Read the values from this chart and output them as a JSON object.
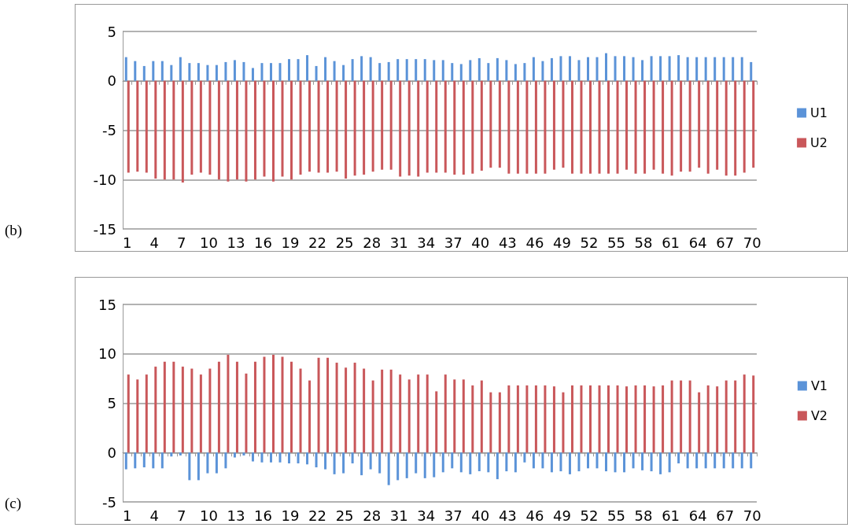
{
  "chart_data": [
    {
      "type": "bar",
      "annotations": [
        "(b)"
      ],
      "categories": [
        "1",
        null,
        null,
        "4",
        null,
        null,
        "7",
        null,
        null,
        "10",
        null,
        null,
        "13",
        null,
        null,
        "16",
        null,
        null,
        "19",
        null,
        null,
        "22",
        null,
        null,
        "25",
        null,
        null,
        "28",
        null,
        null,
        "31",
        null,
        null,
        "34",
        null,
        null,
        "37",
        null,
        null,
        "40",
        null,
        null,
        "43",
        null,
        null,
        "46",
        null,
        null,
        "49",
        null,
        null,
        "52",
        null,
        null,
        "55",
        null,
        null,
        "58",
        null,
        null,
        "61",
        null,
        null,
        "64",
        null,
        null,
        "67",
        null,
        null,
        "70"
      ],
      "series": [
        {
          "name": "U1",
          "color": "#5b93d8",
          "values": [
            2.4,
            2.0,
            1.5,
            2.0,
            2.0,
            1.6,
            2.4,
            1.8,
            1.8,
            1.6,
            1.6,
            1.9,
            2.1,
            1.9,
            1.3,
            1.8,
            1.8,
            1.8,
            2.2,
            2.2,
            2.6,
            1.5,
            2.4,
            2.0,
            1.6,
            2.2,
            2.5,
            2.4,
            1.8,
            1.9,
            2.2,
            2.2,
            2.2,
            2.2,
            2.1,
            2.1,
            1.8,
            1.7,
            2.1,
            2.3,
            1.8,
            2.3,
            2.1,
            1.7,
            1.8,
            2.4,
            2.0,
            2.3,
            2.5,
            2.5,
            2.1,
            2.4,
            2.4,
            2.8,
            2.5,
            2.5,
            2.4,
            2.1,
            2.5,
            2.5,
            2.5,
            2.6,
            2.4,
            2.4,
            2.4,
            2.4,
            2.4,
            2.4,
            2.4,
            1.9
          ]
        },
        {
          "name": "U2",
          "color": "#c9575a",
          "values": [
            -9.3,
            -9.2,
            -9.3,
            -9.9,
            -10.0,
            -10.0,
            -10.3,
            -9.5,
            -9.3,
            -9.5,
            -10.0,
            -10.2,
            -10.0,
            -10.2,
            -10.0,
            -9.7,
            -10.2,
            -9.7,
            -10.0,
            -9.5,
            -9.2,
            -9.3,
            -9.3,
            -9.2,
            -9.9,
            -9.6,
            -9.5,
            -9.2,
            -9.0,
            -9.0,
            -9.7,
            -9.6,
            -9.7,
            -9.3,
            -9.3,
            -9.3,
            -9.5,
            -9.5,
            -9.4,
            -9.1,
            -8.8,
            -8.8,
            -9.4,
            -9.4,
            -9.4,
            -9.4,
            -9.4,
            -9.0,
            -8.8,
            -9.4,
            -9.4,
            -9.4,
            -9.4,
            -9.4,
            -9.4,
            -9.0,
            -9.4,
            -9.4,
            -9.0,
            -9.4,
            -9.6,
            -9.2,
            -9.2,
            -8.8,
            -9.4,
            -9.0,
            -9.6,
            -9.6,
            -9.3,
            -8.8
          ]
        }
      ],
      "ylim": [
        -15,
        5
      ],
      "yticks": [
        -15,
        -10,
        -5,
        0,
        5
      ],
      "grid": "y",
      "legend": "right"
    },
    {
      "type": "bar",
      "annotations": [
        "(c)"
      ],
      "categories": [
        "1",
        null,
        null,
        "4",
        null,
        null,
        "7",
        null,
        null,
        "10",
        null,
        null,
        "13",
        null,
        null,
        "16",
        null,
        null,
        "19",
        null,
        null,
        "22",
        null,
        null,
        "25",
        null,
        null,
        "28",
        null,
        null,
        "31",
        null,
        null,
        "34",
        null,
        null,
        "37",
        null,
        null,
        "40",
        null,
        null,
        "43",
        null,
        null,
        "46",
        null,
        null,
        "49",
        null,
        null,
        "52",
        null,
        null,
        "55",
        null,
        null,
        "58",
        null,
        null,
        "61",
        null,
        null,
        "64",
        null,
        null,
        "67",
        null,
        null,
        "70"
      ],
      "series": [
        {
          "name": "V1",
          "color": "#5b93d8",
          "values": [
            -1.7,
            -1.6,
            -1.5,
            -1.6,
            -1.6,
            -0.4,
            -0.3,
            -2.8,
            -2.8,
            -2.1,
            -2.1,
            -1.6,
            -0.5,
            -0.3,
            -0.9,
            -1.0,
            -1.0,
            -1.0,
            -1.1,
            -1.1,
            -1.2,
            -1.5,
            -1.7,
            -2.2,
            -2.1,
            -1.1,
            -2.3,
            -1.7,
            -2.1,
            -3.3,
            -2.8,
            -2.6,
            -2.1,
            -2.6,
            -2.5,
            -2.0,
            -1.6,
            -2.0,
            -2.2,
            -1.9,
            -2.0,
            -2.7,
            -1.9,
            -2.0,
            -1.0,
            -1.6,
            -1.6,
            -2.0,
            -1.9,
            -2.2,
            -1.9,
            -1.6,
            -1.6,
            -1.9,
            -2.0,
            -2.0,
            -1.6,
            -1.8,
            -1.9,
            -2.2,
            -2.0,
            -1.1,
            -1.6,
            -1.6,
            -1.6,
            -1.6,
            -1.6,
            -1.6,
            -1.6,
            -1.6
          ]
        },
        {
          "name": "V2",
          "color": "#c9575a",
          "values": [
            7.9,
            7.4,
            7.9,
            8.7,
            9.2,
            9.2,
            8.7,
            8.5,
            7.9,
            8.5,
            9.2,
            9.9,
            9.2,
            8.0,
            9.2,
            9.7,
            9.9,
            9.7,
            9.2,
            8.5,
            7.3,
            9.6,
            9.6,
            9.1,
            8.6,
            9.1,
            8.5,
            7.3,
            8.4,
            8.4,
            7.9,
            7.4,
            7.9,
            7.9,
            6.2,
            7.9,
            7.4,
            7.4,
            6.8,
            7.3,
            6.1,
            6.1,
            6.8,
            6.8,
            6.8,
            6.8,
            6.8,
            6.7,
            6.1,
            6.8,
            6.8,
            6.8,
            6.8,
            6.8,
            6.8,
            6.7,
            6.8,
            6.8,
            6.7,
            6.8,
            7.3,
            7.3,
            7.3,
            6.1,
            6.8,
            6.7,
            7.3,
            7.3,
            7.9,
            7.8
          ]
        }
      ],
      "ylim": [
        -5,
        15
      ],
      "yticks": [
        -5,
        0,
        5,
        10,
        15
      ],
      "grid": "y",
      "legend": "right"
    }
  ]
}
